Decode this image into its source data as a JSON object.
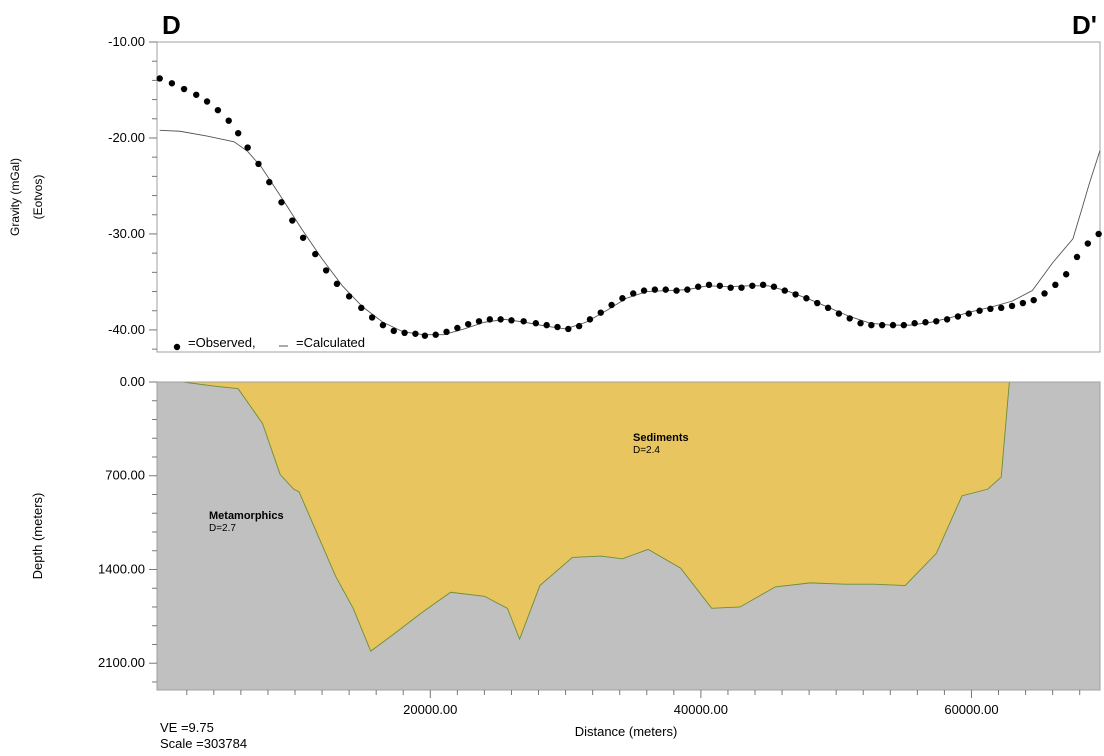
{
  "header": {
    "left": "D",
    "right": "D'"
  },
  "footer": {
    "ve": "VE =9.75",
    "scale": "Scale =303784"
  },
  "chart_data": [
    {
      "type": "scatter",
      "ylabel": "Gravity (mGal)",
      "ylabel2": "(Eotvos)",
      "xlim": [
        -200,
        69500
      ],
      "ylim": [
        -42.3,
        -10
      ],
      "yticks": [
        -10,
        -20,
        -30,
        -40
      ],
      "ytick_labels": [
        "-10.00",
        "-20.00",
        "-30.00",
        "-40.00"
      ],
      "legend": {
        "observed": "=Observed,",
        "calculated": "=Calculated",
        "placement": "bottom-left"
      },
      "series": [
        {
          "name": "=Observed,",
          "x": [
            0,
            900,
            1800,
            2700,
            3500,
            4300,
            5100,
            5800,
            6500,
            7300,
            8100,
            9000,
            9800,
            10600,
            11500,
            12300,
            13100,
            14000,
            14900,
            15700,
            16500,
            17300,
            18100,
            18900,
            19600,
            20400,
            21200,
            22000,
            22800,
            23600,
            24400,
            25200,
            26000,
            26900,
            27800,
            28600,
            29400,
            30200,
            31000,
            31800,
            32600,
            33400,
            34200,
            35000,
            35800,
            36600,
            37400,
            38200,
            39000,
            39800,
            40600,
            41400,
            42200,
            43000,
            43800,
            44600,
            45400,
            46200,
            47000,
            47800,
            48600,
            49400,
            50200,
            51000,
            51800,
            52600,
            53400,
            54200,
            55000,
            55800,
            56600,
            57400,
            58200,
            59000,
            59800,
            60600,
            61400,
            62200,
            63000,
            63800,
            64600,
            65400,
            66200,
            67000,
            67800,
            68600,
            69400
          ],
          "y": [
            -13.8,
            -14.3,
            -14.9,
            -15.5,
            -16.2,
            -17.1,
            -18.2,
            -19.5,
            -21,
            -22.7,
            -24.6,
            -26.7,
            -28.6,
            -30.4,
            -32.1,
            -33.8,
            -35.2,
            -36.5,
            -37.7,
            -38.7,
            -39.5,
            -40.1,
            -40.3,
            -40.4,
            -40.6,
            -40.5,
            -40.2,
            -39.8,
            -39.4,
            -39.1,
            -38.9,
            -38.9,
            -39,
            -39.1,
            -39.3,
            -39.5,
            -39.7,
            -39.9,
            -39.6,
            -38.9,
            -38.2,
            -37.4,
            -36.7,
            -36.2,
            -35.9,
            -35.8,
            -35.8,
            -35.9,
            -35.8,
            -35.5,
            -35.3,
            -35.4,
            -35.6,
            -35.6,
            -35.4,
            -35.3,
            -35.5,
            -35.9,
            -36.3,
            -36.7,
            -37.2,
            -37.7,
            -38.3,
            -38.8,
            -39.3,
            -39.5,
            -39.5,
            -39.5,
            -39.5,
            -39.3,
            -39.2,
            -39.1,
            -38.9,
            -38.6,
            -38.3,
            -38,
            -37.8,
            -37.7,
            -37.5,
            -37.2,
            -36.9,
            -36.2,
            -35.3,
            -34.2,
            -32.4,
            -31,
            -30
          ],
          "x_tail": [],
          "y_tail": []
        },
        {
          "name": "=Calculated",
          "x": [
            0,
            1500,
            3500,
            5500,
            6500,
            7500,
            9000,
            10500,
            12000,
            13500,
            15000,
            16500,
            18000,
            19500,
            21000,
            22500,
            24000,
            25500,
            27000,
            28500,
            30000,
            31500,
            33000,
            34500,
            36000,
            37500,
            39000,
            40500,
            42000,
            43500,
            45000,
            46500,
            48000,
            49500,
            51000,
            52500,
            54000,
            55500,
            57000,
            58500,
            60000,
            61500,
            63000,
            64500,
            66000,
            67500,
            68200,
            68700,
            69500
          ],
          "y": [
            -19.2,
            -19.3,
            -19.8,
            -20.4,
            -21.4,
            -23,
            -26.2,
            -29.5,
            -32.6,
            -35.4,
            -37.6,
            -39.2,
            -40.2,
            -40.5,
            -40.5,
            -39.9,
            -39.2,
            -38.9,
            -39.2,
            -39.6,
            -39.9,
            -39.2,
            -38,
            -36.7,
            -36,
            -35.9,
            -35.8,
            -35.4,
            -35.5,
            -35.4,
            -35.4,
            -36,
            -36.8,
            -37.7,
            -38.6,
            -39.3,
            -39.5,
            -39.5,
            -39.2,
            -38.7,
            -38.1,
            -37.6,
            -37,
            -35.9,
            -33,
            -30.5,
            -27.2,
            -24.8,
            -21.3
          ]
        }
      ]
    },
    {
      "type": "area",
      "xlabel": "Distance (meters)",
      "ylabel": "Depth (meters)",
      "xlim": [
        -200,
        69500
      ],
      "ylim": [
        0,
        2300
      ],
      "xticks": [
        20000,
        40000,
        60000
      ],
      "xtick_labels": [
        "20000.00",
        "40000.00",
        "60000.00"
      ],
      "yticks": [
        0,
        700,
        1400,
        2100
      ],
      "ytick_labels": [
        "0.00",
        "700.00",
        "1400.00",
        "2100.00"
      ],
      "bodies": [
        {
          "name": "Metamorphics",
          "density": "D=2.7",
          "color": "#c0c0c0"
        },
        {
          "name": "Sediments",
          "density": "D=2.4",
          "color": "#e8c55e"
        }
      ],
      "boundary": {
        "x": [
          -200,
          1700,
          4000,
          5800,
          7600,
          8900,
          9900,
          10300,
          13000,
          14300,
          15600,
          17200,
          19400,
          21500,
          24000,
          25700,
          26600,
          28100,
          30500,
          32600,
          34200,
          36100,
          38500,
          40800,
          42900,
          45500,
          48100,
          50600,
          52800,
          55100,
          57400,
          59300,
          61200,
          62200,
          62800,
          64500,
          66800,
          68000,
          69500
        ],
        "y": [
          0,
          0,
          30,
          50,
          310,
          690,
          800,
          820,
          1450,
          1690,
          2010,
          1890,
          1720,
          1570,
          1600,
          1690,
          1920,
          1520,
          1310,
          1300,
          1320,
          1250,
          1390,
          1690,
          1680,
          1530,
          1500,
          1510,
          1510,
          1520,
          1280,
          850,
          800,
          710,
          0,
          0,
          0,
          0,
          0
        ]
      }
    }
  ]
}
